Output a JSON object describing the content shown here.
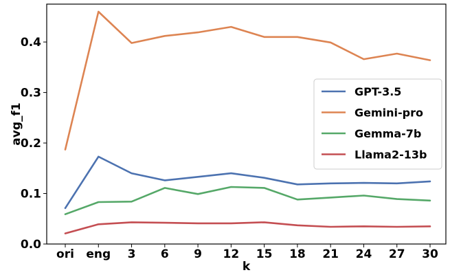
{
  "chart_data": {
    "type": "line",
    "title": "",
    "xlabel": "k",
    "ylabel": "avg_f1",
    "categories": [
      "ori",
      "eng",
      "3",
      "6",
      "9",
      "12",
      "15",
      "18",
      "21",
      "24",
      "27",
      "30"
    ],
    "ylim": [
      0,
      0.475
    ],
    "yticks": [
      0.0,
      0.1,
      0.2,
      0.3,
      0.4
    ],
    "ytick_labels": [
      "0.0",
      "0.1",
      "0.2",
      "0.3",
      "0.4"
    ],
    "grid": false,
    "legend_position": "center-right",
    "series": [
      {
        "name": "GPT-3.5",
        "color": "#4c72b0",
        "values": [
          0.071,
          0.173,
          0.14,
          0.126,
          0.133,
          0.14,
          0.131,
          0.118,
          0.12,
          0.121,
          0.12,
          0.124
        ]
      },
      {
        "name": "Gemini-pro",
        "color": "#dd8452",
        "values": [
          0.187,
          0.46,
          0.398,
          0.412,
          0.419,
          0.43,
          0.41,
          0.41,
          0.399,
          0.366,
          0.377,
          0.364
        ]
      },
      {
        "name": "Gemma-7b",
        "color": "#55a868",
        "values": [
          0.059,
          0.083,
          0.084,
          0.111,
          0.099,
          0.113,
          0.111,
          0.088,
          0.092,
          0.096,
          0.089,
          0.086
        ]
      },
      {
        "name": "Llama2-13b",
        "color": "#c44e52",
        "values": [
          0.021,
          0.039,
          0.043,
          0.042,
          0.041,
          0.041,
          0.043,
          0.037,
          0.034,
          0.035,
          0.034,
          0.035
        ]
      }
    ]
  }
}
